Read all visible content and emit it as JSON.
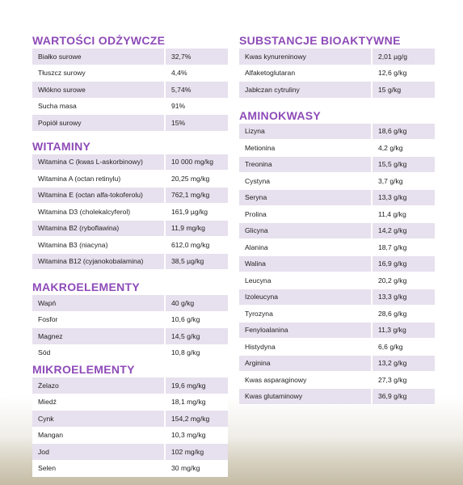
{
  "sections": {
    "nutritional": {
      "title": "WARTOŚCI ODŻYWCZE",
      "rows": [
        {
          "name": "Białko surowe",
          "value": "32,7%"
        },
        {
          "name": "Tłuszcz surowy",
          "value": "4,4%"
        },
        {
          "name": "Włókno surowe",
          "value": "5,74%"
        },
        {
          "name": "Sucha masa",
          "value": "91%"
        },
        {
          "name": "Popiół surowy",
          "value": "15%"
        }
      ]
    },
    "vitamins": {
      "title": "WITAMINY",
      "rows": [
        {
          "name": "Witamina C (kwas L-askorbinowy)",
          "value": "10 000 mg/kg"
        },
        {
          "name": "Witamina A (octan retinylu)",
          "value": "20,25 mg/kg"
        },
        {
          "name": "Witamina E (octan alfa-tokoferolu)",
          "value": "762,1 mg/kg"
        },
        {
          "name": "Witamina D3 (cholekalcyferol)",
          "value": "161,9 µg/kg"
        },
        {
          "name": "Witamina B2 (ryboflawina)",
          "value": "11,9 mg/kg"
        },
        {
          "name": "Witamina B3 (niacyna)",
          "value": "612,0 mg/kg"
        },
        {
          "name": "Witamina B12 (cyjanokobalamina)",
          "value": "38,5 µg/kg"
        }
      ]
    },
    "macro": {
      "title": "MAKROELEMENTY",
      "rows": [
        {
          "name": "Wapń",
          "value": "40 g/kg"
        },
        {
          "name": "Fosfor",
          "value": "10,6 g/kg"
        },
        {
          "name": "Magnez",
          "value": "14,5 g/kg"
        },
        {
          "name": "Sód",
          "value": "10,8 g/kg"
        }
      ]
    },
    "micro": {
      "title": "MIKROELEMENTY",
      "rows": [
        {
          "name": "Żelazo",
          "value": "19,6 mg/kg"
        },
        {
          "name": "Miedź",
          "value": "18,1 mg/kg"
        },
        {
          "name": "Cynk",
          "value": "154,2 mg/kg"
        },
        {
          "name": "Mangan",
          "value": "10,3 mg/kg"
        },
        {
          "name": "Jod",
          "value": "102 mg/kg"
        },
        {
          "name": "Selen",
          "value": "30 mg/kg"
        }
      ]
    },
    "bioactive": {
      "title": "SUBSTANCJE BIOAKTYWNE",
      "rows": [
        {
          "name": "Kwas kynureninowy",
          "value": "2,01 µg/g"
        },
        {
          "name": "Alfaketoglutaran",
          "value": "12,6 g/kg"
        },
        {
          "name": "Jabłczan cytruliny",
          "value": "15 g/kg"
        }
      ]
    },
    "amino": {
      "title": "AMINOKWASY",
      "rows": [
        {
          "name": "Lizyna",
          "value": "18,6 g/kg"
        },
        {
          "name": "Metionina",
          "value": "4,2 g/kg"
        },
        {
          "name": "Treonina",
          "value": "15,5 g/kg"
        },
        {
          "name": "Cystyna",
          "value": "3,7 g/kg"
        },
        {
          "name": "Seryna",
          "value": "13,3 g/kg"
        },
        {
          "name": "Prolina",
          "value": "11,4 g/kg"
        },
        {
          "name": "Glicyna",
          "value": "14,2 g/kg"
        },
        {
          "name": "Alanina",
          "value": "18,7 g/kg"
        },
        {
          "name": "Walina",
          "value": "16,9 g/kg"
        },
        {
          "name": "Leucyna",
          "value": "20,2 g/kg"
        },
        {
          "name": "Izoleucyna",
          "value": "13,3 g/kg"
        },
        {
          "name": "Tyrozyna",
          "value": "28,6 g/kg"
        },
        {
          "name": "Fenyloalanina",
          "value": "11,3 g/kg"
        },
        {
          "name": "Histydyna",
          "value": "6,6 g/kg"
        },
        {
          "name": "Arginina",
          "value": "13,2 g/kg"
        },
        {
          "name": "Kwas asparaginowy",
          "value": "27,3 g/kg"
        },
        {
          "name": "Kwas glutaminowy",
          "value": "36,9 g/kg"
        }
      ]
    }
  },
  "colors": {
    "heading": "#8e4bb8",
    "row_shade": "#e7e0ee"
  }
}
